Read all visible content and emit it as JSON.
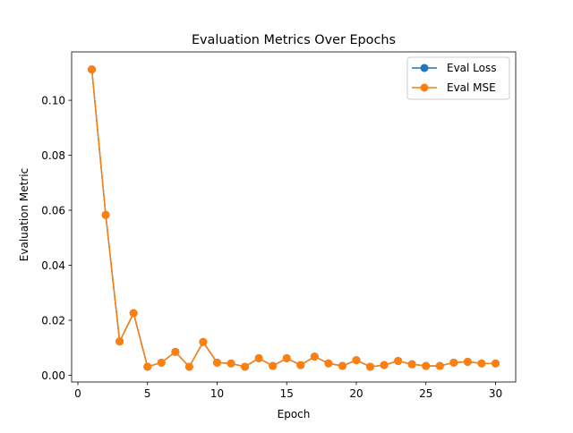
{
  "chart_data": {
    "type": "line",
    "title": "Evaluation Metrics Over Epochs",
    "xlabel": "Epoch",
    "ylabel": "Evaluation Metric",
    "xlim": [
      -0.45,
      31.45
    ],
    "ylim": [
      -0.00245,
      0.1176
    ],
    "x_ticks": [
      0,
      5,
      10,
      15,
      20,
      25,
      30
    ],
    "x_tick_labels": [
      "0",
      "5",
      "10",
      "15",
      "20",
      "25",
      "30"
    ],
    "y_ticks": [
      0.0,
      0.02,
      0.04,
      0.06,
      0.08,
      0.1
    ],
    "y_tick_labels": [
      "0.00",
      "0.02",
      "0.04",
      "0.06",
      "0.08",
      "0.10"
    ],
    "grid": false,
    "legend_position": "top-right",
    "x": [
      1,
      2,
      3,
      4,
      5,
      6,
      7,
      8,
      9,
      10,
      11,
      12,
      13,
      14,
      15,
      16,
      17,
      18,
      19,
      20,
      21,
      22,
      23,
      24,
      25,
      26,
      27,
      28,
      29,
      30
    ],
    "series": [
      {
        "name": "Eval Loss",
        "color": "#1f77b4",
        "marker": "circle",
        "values": [
          0.1112,
          0.0583,
          0.0123,
          0.0226,
          0.0031,
          0.0046,
          0.0085,
          0.0031,
          0.0121,
          0.0046,
          0.0043,
          0.0031,
          0.0062,
          0.0034,
          0.0062,
          0.0037,
          0.0068,
          0.0043,
          0.0034,
          0.0055,
          0.0031,
          0.0037,
          0.0052,
          0.004,
          0.0034,
          0.0034,
          0.0046,
          0.0049,
          0.0043,
          0.0043
        ]
      },
      {
        "name": "Eval MSE",
        "color": "#ff7f0e",
        "marker": "circle",
        "values": [
          0.1112,
          0.0583,
          0.0123,
          0.0226,
          0.0031,
          0.0046,
          0.0085,
          0.0031,
          0.0121,
          0.0046,
          0.0043,
          0.0031,
          0.0062,
          0.0034,
          0.0062,
          0.0037,
          0.0068,
          0.0043,
          0.0034,
          0.0055,
          0.0031,
          0.0037,
          0.0052,
          0.004,
          0.0034,
          0.0034,
          0.0046,
          0.0049,
          0.0043,
          0.0043
        ]
      }
    ]
  }
}
